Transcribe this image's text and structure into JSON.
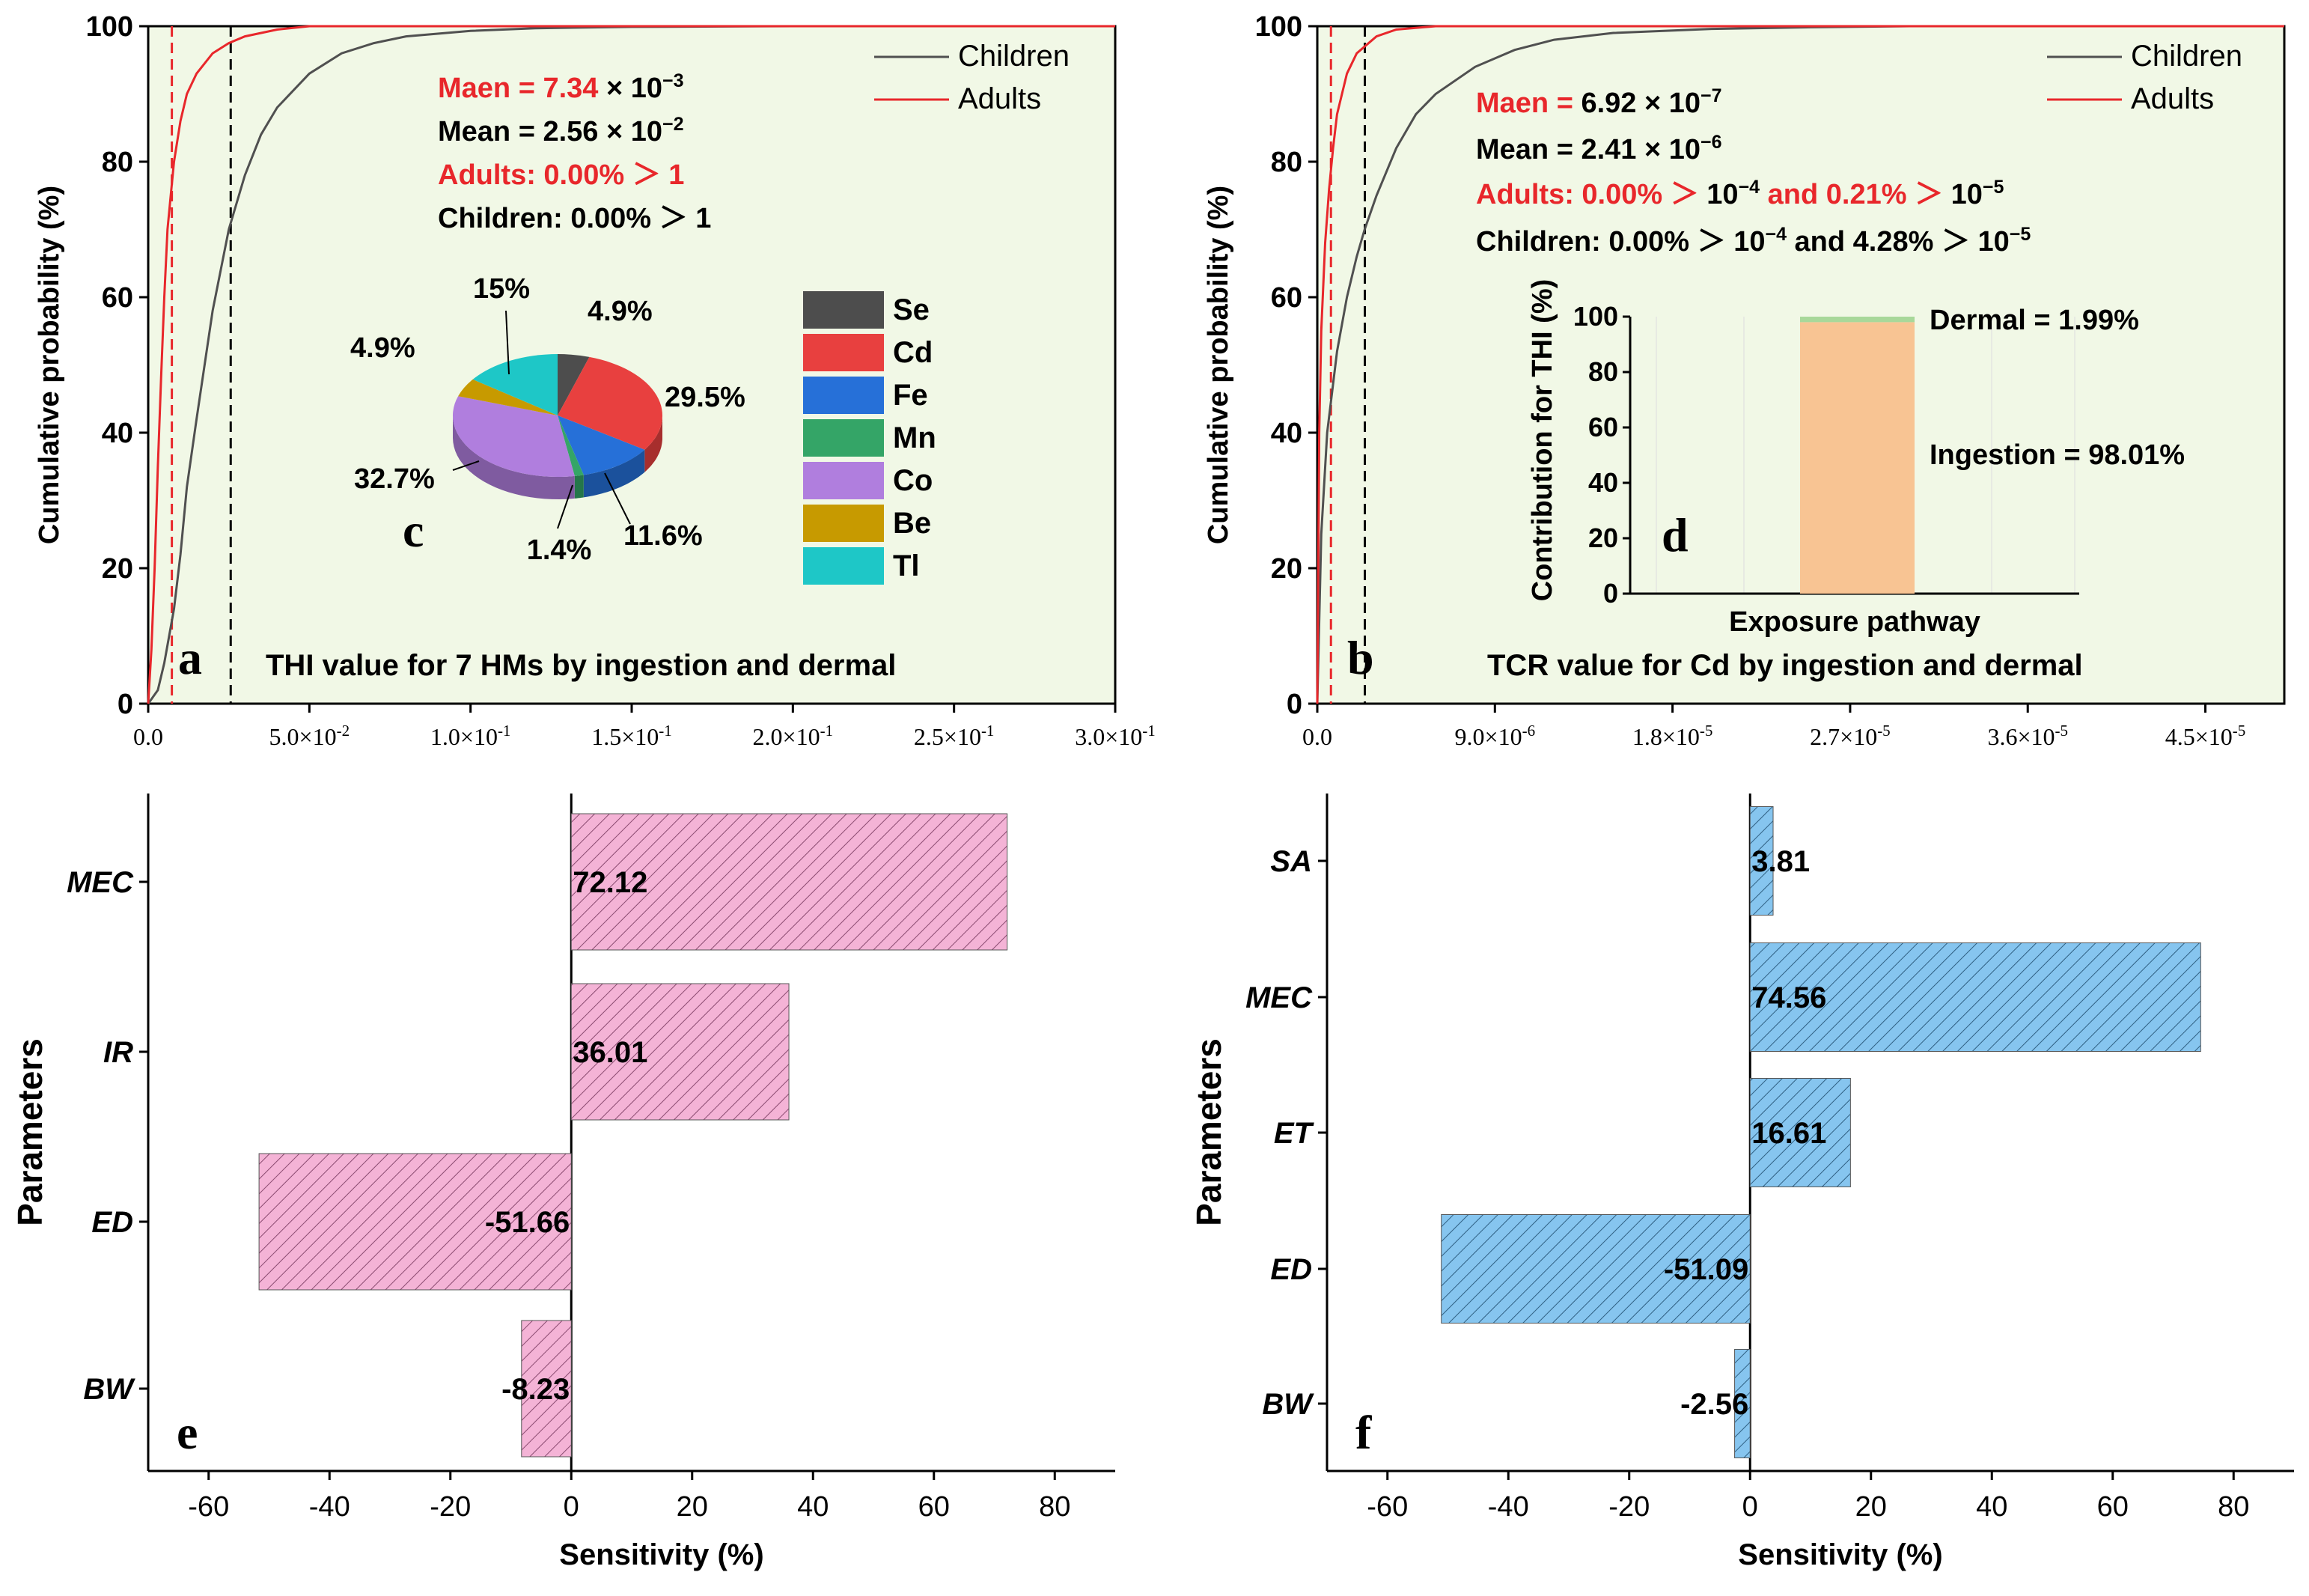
{
  "colors": {
    "panel_bg": "#f1f8e6",
    "axis": "#000000",
    "children_line": "#505050",
    "adults_line": "#e8272b",
    "mean_ref_line": "#000000",
    "adults_ref_line": "#e8272b",
    "red_text": "#e8272b",
    "pink_bar": "#f4b3d6",
    "pink_hatch": "#8a4a70",
    "blue_bar": "#86c5ef",
    "blue_hatch": "#2f5f82",
    "grid": "#dddddd",
    "ingestion_bar": "#f8c493",
    "dermal_bar": "#a8d89a"
  },
  "chart_data": [
    {
      "id": "a",
      "type": "line",
      "panel_label": "a",
      "caption": "THI value for 7 HMs by ingestion and dermal",
      "ylabel": "Cumulative probability (%)",
      "ylim": [
        0,
        100
      ],
      "yticks": [
        "0",
        "20",
        "40",
        "60",
        "80",
        "100"
      ],
      "xlim": [
        0,
        0.3
      ],
      "xticks": [
        {
          "value": 0,
          "base": "0.0",
          "exp": ""
        },
        {
          "value": 0.05,
          "base": "5.0×10",
          "exp": "-2"
        },
        {
          "value": 0.1,
          "base": "1.0×10",
          "exp": "-1"
        },
        {
          "value": 0.15,
          "base": "1.5×10",
          "exp": "-1"
        },
        {
          "value": 0.2,
          "base": "2.0×10",
          "exp": "-1"
        },
        {
          "value": 0.25,
          "base": "2.5×10",
          "exp": "-1"
        },
        {
          "value": 0.3,
          "base": "3.0×10",
          "exp": "-1"
        }
      ],
      "ref_lines": {
        "adults_mean": 0.00734,
        "children_mean": 0.0256
      },
      "series": [
        {
          "name": "Children",
          "x": [
            0,
            0.003,
            0.005,
            0.008,
            0.01,
            0.012,
            0.015,
            0.02,
            0.025,
            0.03,
            0.035,
            0.04,
            0.05,
            0.06,
            0.07,
            0.08,
            0.1,
            0.12,
            0.15,
            0.2,
            0.25,
            0.3
          ],
          "y": [
            0,
            2,
            6,
            14,
            22,
            32,
            42,
            58,
            70,
            78,
            84,
            88,
            93,
            96,
            97.5,
            98.5,
            99.3,
            99.7,
            99.9,
            100,
            100,
            100
          ]
        },
        {
          "name": "Adults",
          "x": [
            0,
            0.001,
            0.002,
            0.003,
            0.004,
            0.005,
            0.006,
            0.007,
            0.008,
            0.01,
            0.012,
            0.015,
            0.02,
            0.025,
            0.03,
            0.04,
            0.05,
            0.3
          ],
          "y": [
            0,
            8,
            20,
            35,
            48,
            60,
            70,
            75,
            80,
            86,
            90,
            93,
            96,
            97.5,
            98.5,
            99.5,
            100,
            100
          ]
        }
      ],
      "legend": [
        "Children",
        "Adults"
      ],
      "stats": {
        "maen_label": "Maen = 7.34",
        "maen_suffix": " × 10",
        "maen_exp": "−3",
        "mean_label": "Mean = 2.56 × 10",
        "mean_exp": "−2",
        "adults_line": "Adults: 0.00% ＞ 1",
        "children_line": "Children: 0.00% ＞ 1"
      }
    },
    {
      "id": "b",
      "type": "line",
      "panel_label": "b",
      "caption": "TCR value for Cd by ingestion and dermal",
      "ylabel": "Cumulative probability (%)",
      "ylim": [
        0,
        100
      ],
      "yticks": [
        "0",
        "20",
        "40",
        "60",
        "80",
        "100"
      ],
      "xlim": [
        0,
        4.9e-05
      ],
      "xticks": [
        {
          "value": 0,
          "base": "0.0",
          "exp": ""
        },
        {
          "value": 9e-06,
          "base": "9.0×10",
          "exp": "-6"
        },
        {
          "value": 1.8e-05,
          "base": "1.8×10",
          "exp": "-5"
        },
        {
          "value": 2.7e-05,
          "base": "2.7×10",
          "exp": "-5"
        },
        {
          "value": 3.6e-05,
          "base": "3.6×10",
          "exp": "-5"
        },
        {
          "value": 4.5e-05,
          "base": "4.5×10",
          "exp": "-5"
        }
      ],
      "ref_lines": {
        "adults_mean": 6.92e-07,
        "children_mean": 2.41e-06
      },
      "series": [
        {
          "name": "Children",
          "x": [
            0,
            2e-07,
            5e-07,
            1e-06,
            1.5e-06,
            2e-06,
            2.4e-06,
            3e-06,
            4e-06,
            5e-06,
            6e-06,
            8e-06,
            1e-05,
            1.2e-05,
            1.5e-05,
            2e-05,
            2.5e-05,
            3e-05,
            4.9e-05
          ],
          "y": [
            0,
            25,
            40,
            52,
            60,
            66,
            70,
            75,
            82,
            87,
            90,
            94,
            96.5,
            98,
            99,
            99.6,
            99.85,
            100,
            100
          ]
        },
        {
          "name": "Adults",
          "x": [
            0,
            1e-07,
            2e-07,
            4e-07,
            6e-07,
            8e-07,
            1e-06,
            1.5e-06,
            2e-06,
            3e-06,
            4e-06,
            6e-06,
            4.9e-05
          ],
          "y": [
            0,
            40,
            55,
            68,
            76,
            82,
            87,
            93,
            96,
            98.5,
            99.5,
            100,
            100
          ]
        }
      ],
      "legend": [
        "Children",
        "Adults"
      ],
      "stats": {
        "maen_label": "Maen = ",
        "maen_value": "6.92 × 10",
        "maen_exp": "−7",
        "mean_label": "Mean = 2.41 × 10",
        "mean_exp": "−6",
        "adults_a": "Adults: 0.00% ＞ ",
        "adults_exp1_base": "10",
        "adults_exp1": "−4",
        "adults_b": " and 0.21% ＞ ",
        "adults_exp2_base": "10",
        "adults_exp2": "−5",
        "children_a": "Children: 0.00% ＞ 10",
        "children_exp1": "−4",
        "children_b": " and 4.28% ＞ 10",
        "children_exp2": "−5"
      }
    },
    {
      "id": "c",
      "type": "pie",
      "panel_label": "c",
      "slices": [
        {
          "label": "Se",
          "value": 4.9,
          "text": "4.9%",
          "color": "#4d4d4d"
        },
        {
          "label": "Cd",
          "value": 29.5,
          "text": "29.5%",
          "color": "#e8403f"
        },
        {
          "label": "Fe",
          "value": 11.6,
          "text": "11.6%",
          "color": "#2670d8"
        },
        {
          "label": "Mn",
          "value": 1.4,
          "text": "1.4%",
          "color": "#34a567"
        },
        {
          "label": "Co",
          "value": 32.7,
          "text": "32.7%",
          "color": "#b07ede"
        },
        {
          "label": "Be",
          "value": 4.9,
          "text": "4.9%",
          "color": "#c79a00"
        },
        {
          "label": "Tl",
          "value": 15.0,
          "text": "15%",
          "color": "#1ec7c7"
        }
      ]
    },
    {
      "id": "d",
      "type": "bar",
      "panel_label": "d",
      "ylabel": "Contribution for THI (%)",
      "xlabel": "Exposure pathway",
      "ylim": [
        0,
        100
      ],
      "yticks": [
        "0",
        "20",
        "40",
        "60",
        "80",
        "100"
      ],
      "stack": [
        {
          "name": "Ingestion",
          "value": 98.01,
          "text": "Ingestion = 98.01%"
        },
        {
          "name": "Dermal",
          "value": 1.99,
          "text": "Dermal = 1.99%"
        }
      ]
    },
    {
      "id": "e",
      "type": "bar",
      "orientation": "horizontal",
      "panel_label": "e",
      "xlabel": "Sensitivity (%)",
      "ylabel": "Parameters",
      "xlim": [
        -70,
        90
      ],
      "xticks": [
        "-60",
        "-40",
        "-20",
        "0",
        "20",
        "40",
        "60",
        "80"
      ],
      "xtick_values": [
        -60,
        -40,
        -20,
        0,
        20,
        40,
        60,
        80
      ],
      "categories": [
        "MEC",
        "IR",
        "ED",
        "BW"
      ],
      "values": [
        72.12,
        36.01,
        -51.66,
        -8.23
      ],
      "value_labels": [
        "72.12",
        "36.01",
        "-51.66",
        "-8.23"
      ]
    },
    {
      "id": "f",
      "type": "bar",
      "orientation": "horizontal",
      "panel_label": "f",
      "xlabel": "Sensitivity (%)",
      "ylabel": "Parameters",
      "xlim": [
        -70,
        90
      ],
      "xticks": [
        "-60",
        "-40",
        "-20",
        "0",
        "20",
        "40",
        "60",
        "80"
      ],
      "xtick_values": [
        -60,
        -40,
        -20,
        0,
        20,
        40,
        60,
        80
      ],
      "categories": [
        "SA",
        "MEC",
        "ET",
        "ED",
        "BW"
      ],
      "values": [
        3.81,
        74.56,
        16.61,
        -51.09,
        -2.56
      ],
      "value_labels": [
        "3.81",
        "74.56",
        "16.61",
        "-51.09",
        "-2.56"
      ]
    }
  ]
}
